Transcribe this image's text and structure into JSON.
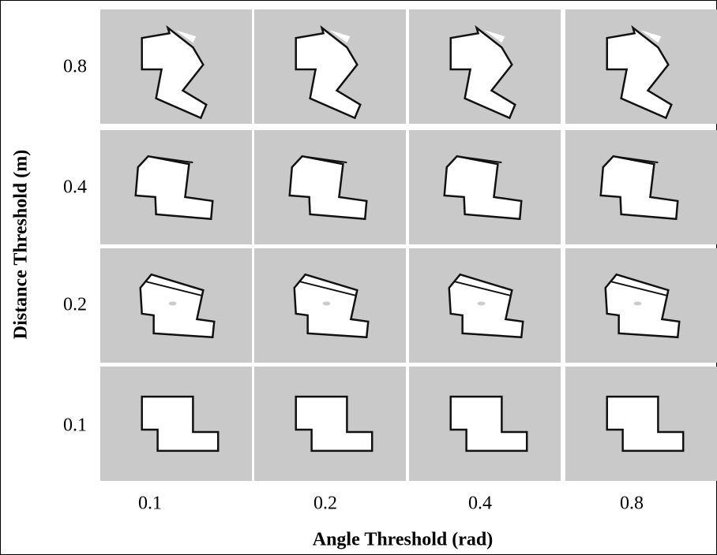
{
  "x_axis": {
    "title": "Angle Threshold (rad)",
    "labels": [
      "0.1",
      "0.2",
      "0.4",
      "0.8"
    ]
  },
  "y_axis": {
    "title": "Distance Threshold (m)",
    "labels": [
      "0.8",
      "0.4",
      "0.2",
      "0.1"
    ]
  }
}
